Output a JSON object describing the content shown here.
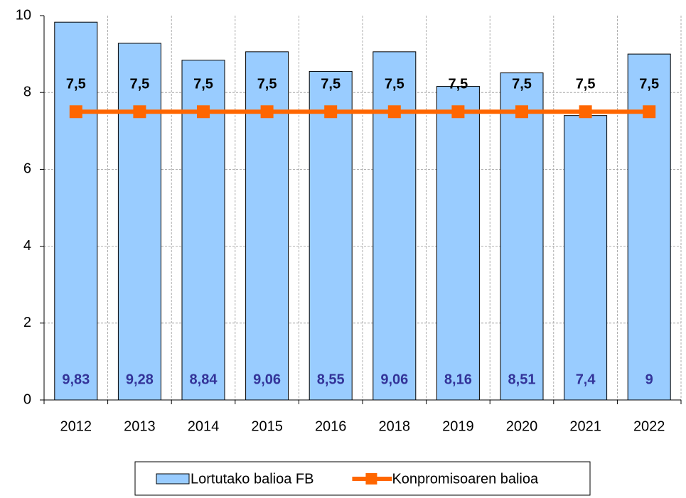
{
  "chart_data": {
    "type": "bar",
    "categories": [
      "2012",
      "2013",
      "2014",
      "2015",
      "2016",
      "2018",
      "2019",
      "2020",
      "2021",
      "2022"
    ],
    "series": [
      {
        "name": "Lortutako balioa FB",
        "type": "bar",
        "color": "#99ccff",
        "values": [
          9.83,
          9.28,
          8.84,
          9.06,
          8.55,
          9.06,
          8.16,
          8.51,
          7.4,
          9
        ],
        "value_labels": [
          "9,83",
          "9,28",
          "8,84",
          "9,06",
          "8,55",
          "9,06",
          "8,16",
          "8,51",
          "7,4",
          "9"
        ]
      },
      {
        "name": "Konpromisoaren balioa",
        "type": "line",
        "color": "#ff6600",
        "values": [
          7.5,
          7.5,
          7.5,
          7.5,
          7.5,
          7.5,
          7.5,
          7.5,
          7.5,
          7.5
        ],
        "value_labels": [
          "7,5",
          "7,5",
          "7,5",
          "7,5",
          "7,5",
          "7,5",
          "7,5",
          "7,5",
          "7,5",
          "7,5"
        ]
      }
    ],
    "ylim": [
      0,
      10
    ],
    "yticks": [
      0,
      2,
      4,
      6,
      8,
      10
    ],
    "grid": true,
    "legend": "bottom"
  }
}
